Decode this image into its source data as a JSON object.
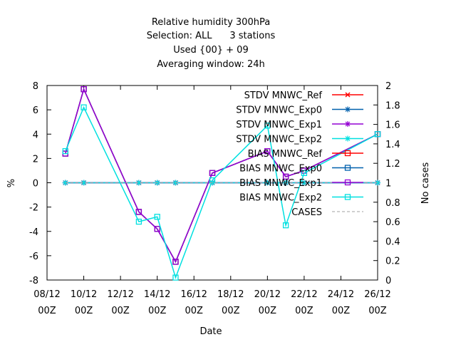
{
  "chart_data": {
    "type": "line",
    "title_lines": [
      "Relative humidity 300hPa",
      "Selection: ALL      3 stations",
      "Used {00} + 09",
      "Averaging window: 24h"
    ],
    "xlabel": "Date",
    "ylabel": "%",
    "y2label": "No cases",
    "x_ticks": [
      {
        "date": "2017-12-08",
        "label1": "08/12",
        "label2": "00Z"
      },
      {
        "date": "2017-12-10",
        "label1": "10/12",
        "label2": "00Z"
      },
      {
        "date": "2017-12-12",
        "label1": "12/12",
        "label2": "00Z"
      },
      {
        "date": "2017-12-14",
        "label1": "14/12",
        "label2": "00Z"
      },
      {
        "date": "2017-12-16",
        "label1": "16/12",
        "label2": "00Z"
      },
      {
        "date": "2017-12-18",
        "label1": "18/12",
        "label2": "00Z"
      },
      {
        "date": "2017-12-20",
        "label1": "20/12",
        "label2": "00Z"
      },
      {
        "date": "2017-12-22",
        "label1": "22/12",
        "label2": "00Z"
      },
      {
        "date": "2017-12-24",
        "label1": "24/12",
        "label2": "00Z"
      },
      {
        "date": "2017-12-26",
        "label1": "26/12",
        "label2": "00Z"
      }
    ],
    "xlim": [
      "2017-12-08",
      "2017-12-26"
    ],
    "ylim": [
      -8,
      8
    ],
    "y_ticks": [
      -8,
      -6,
      -4,
      -2,
      0,
      2,
      4,
      6,
      8
    ],
    "y2lim": [
      0,
      2
    ],
    "y2_ticks": [
      0,
      0.2,
      0.4,
      0.6,
      0.8,
      1,
      1.2,
      1.4,
      1.6,
      1.8,
      2
    ],
    "y2_tick_labels": [
      "0",
      "0.2",
      "0.4",
      "0.6",
      "0.8",
      "1",
      "1.2",
      "1.4",
      "1.6",
      "1.8",
      "2"
    ],
    "grid": false,
    "legend_position": "top-right",
    "colors": {
      "ref": "#ff0000",
      "exp0": "#0060ad",
      "exp1": "#9400d3",
      "exp2": "#00e0e0",
      "cases": "#a0a0a0"
    },
    "series": [
      {
        "name": "STDV MNWC_Ref",
        "marker": "x",
        "color": "#ff0000",
        "dash": false,
        "axis": "y1",
        "x": [
          "2017-12-09",
          "2017-12-10",
          "2017-12-13",
          "2017-12-14",
          "2017-12-15",
          "2017-12-17",
          "2017-12-20",
          "2017-12-21",
          "2017-12-22",
          "2017-12-26"
        ],
        "y": [
          0,
          0,
          0,
          0,
          0,
          0,
          0,
          0,
          0,
          0
        ]
      },
      {
        "name": "STDV MNWC_Exp0",
        "marker": "star",
        "color": "#0060ad",
        "dash": false,
        "axis": "y1",
        "x": [
          "2017-12-09",
          "2017-12-10",
          "2017-12-13",
          "2017-12-14",
          "2017-12-15",
          "2017-12-17",
          "2017-12-20",
          "2017-12-21",
          "2017-12-22",
          "2017-12-26"
        ],
        "y": [
          0,
          0,
          0,
          0,
          0,
          0,
          0,
          0,
          0,
          0
        ]
      },
      {
        "name": "STDV MNWC_Exp1",
        "marker": "star",
        "color": "#9400d3",
        "dash": false,
        "axis": "y1",
        "x": [
          "2017-12-09",
          "2017-12-10",
          "2017-12-13",
          "2017-12-14",
          "2017-12-15",
          "2017-12-17",
          "2017-12-20",
          "2017-12-21",
          "2017-12-22",
          "2017-12-26"
        ],
        "y": [
          0,
          0,
          0,
          0,
          0,
          0,
          0,
          0,
          0,
          0
        ]
      },
      {
        "name": "STDV MNWC_Exp2",
        "marker": "star",
        "color": "#00e0e0",
        "dash": false,
        "axis": "y1",
        "x": [
          "2017-12-09",
          "2017-12-10",
          "2017-12-13",
          "2017-12-14",
          "2017-12-15",
          "2017-12-17",
          "2017-12-20",
          "2017-12-21",
          "2017-12-22",
          "2017-12-26"
        ],
        "y": [
          0,
          0,
          0,
          0,
          0,
          0,
          0,
          0,
          0,
          0
        ]
      },
      {
        "name": "BIAS MNWC_Ref",
        "marker": "square",
        "color": "#ff0000",
        "dash": false,
        "axis": "y1",
        "x": [
          "2017-12-09",
          "2017-12-10",
          "2017-12-13",
          "2017-12-14",
          "2017-12-15",
          "2017-12-17",
          "2017-12-20",
          "2017-12-21",
          "2017-12-22",
          "2017-12-26"
        ],
        "y": [
          2.4,
          7.7,
          -2.4,
          -3.8,
          -6.5,
          0.8,
          2.6,
          0.5,
          1.0,
          4.0
        ]
      },
      {
        "name": "BIAS MNWC_Exp0",
        "marker": "square",
        "color": "#0060ad",
        "dash": false,
        "axis": "y1",
        "x": [
          "2017-12-09",
          "2017-12-10",
          "2017-12-13",
          "2017-12-14",
          "2017-12-15",
          "2017-12-17",
          "2017-12-20",
          "2017-12-21",
          "2017-12-22",
          "2017-12-26"
        ],
        "y": [
          2.4,
          7.7,
          -2.4,
          -3.8,
          -6.5,
          0.8,
          2.6,
          0.5,
          1.0,
          4.0
        ]
      },
      {
        "name": "BIAS MNWC_Exp1",
        "marker": "square",
        "color": "#9400d3",
        "dash": false,
        "axis": "y1",
        "x": [
          "2017-12-09",
          "2017-12-10",
          "2017-12-13",
          "2017-12-14",
          "2017-12-15",
          "2017-12-17",
          "2017-12-20",
          "2017-12-21",
          "2017-12-22",
          "2017-12-26"
        ],
        "y": [
          2.4,
          7.7,
          -2.4,
          -3.8,
          -6.5,
          0.8,
          2.6,
          0.5,
          1.0,
          4.0
        ]
      },
      {
        "name": "BIAS MNWC_Exp2",
        "marker": "square",
        "color": "#00e0e0",
        "dash": false,
        "axis": "y1",
        "x": [
          "2017-12-09",
          "2017-12-10",
          "2017-12-13",
          "2017-12-14",
          "2017-12-15",
          "2017-12-17",
          "2017-12-20",
          "2017-12-21",
          "2017-12-22",
          "2017-12-26"
        ],
        "y": [
          2.6,
          6.2,
          -3.2,
          -2.8,
          -7.8,
          0.2,
          4.7,
          -3.5,
          0.8,
          4.0
        ]
      },
      {
        "name": "CASES",
        "marker": "none",
        "color": "#a0a0a0",
        "dash": true,
        "axis": "y2",
        "x": [
          "2017-12-09",
          "2017-12-10",
          "2017-12-13",
          "2017-12-14",
          "2017-12-15",
          "2017-12-17",
          "2017-12-20",
          "2017-12-21",
          "2017-12-22",
          "2017-12-26"
        ],
        "y": [
          1,
          1,
          1,
          1,
          1,
          1,
          1,
          1,
          1,
          1
        ]
      }
    ]
  }
}
